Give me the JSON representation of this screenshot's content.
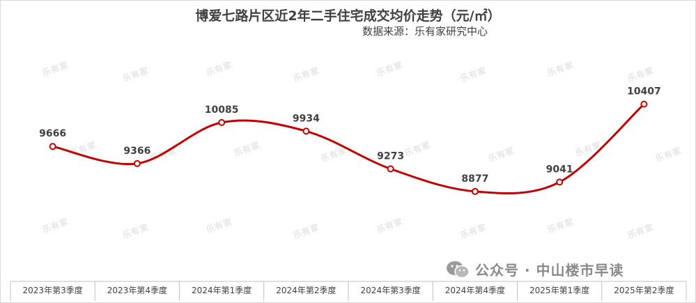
{
  "chart_data": {
    "type": "line",
    "title": "博爱七路片区近2年二手住宅成交均价走势（元/㎡）",
    "subtitle": "数据来源：乐有家研究中心",
    "categories": [
      "2023年第3季度",
      "2023年第4季度",
      "2024年第1季度",
      "2024年第2季度",
      "2024年第3季度",
      "2024年第4季度",
      "2025年第1季度",
      "2025年第2季度"
    ],
    "series": [
      {
        "values": [
          9666,
          9366,
          10085,
          9934,
          9273,
          8877,
          9041,
          10407
        ],
        "color": "#c00000"
      }
    ],
    "ylim": [
      7300,
      11500
    ],
    "smooth": true,
    "data_labels": true,
    "legend": "none",
    "grid": false
  },
  "watermark": {
    "text": "乐有家"
  },
  "footer": {
    "brand": "公众号 · 中山楼市早读",
    "icon": "wechat-icon"
  }
}
